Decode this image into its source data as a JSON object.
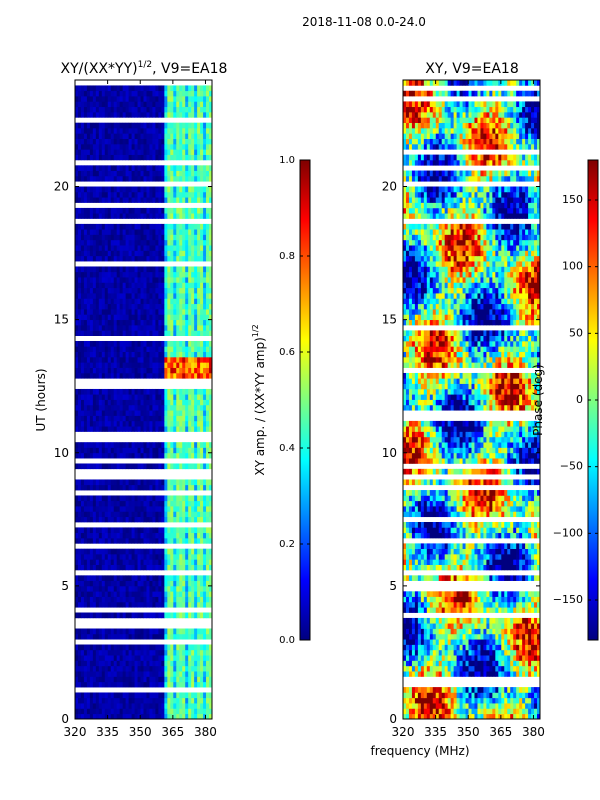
{
  "suptitle": "2018-11-08 0.0-24.0",
  "shared_xlabel": "frequency (MHz)",
  "colors": {
    "jet": [
      "#00007f",
      "#0000ff",
      "#007fff",
      "#00ffff",
      "#7fff7f",
      "#ffff00",
      "#ff7f00",
      "#ff0000",
      "#7f0000"
    ]
  },
  "chart_data": [
    {
      "type": "heatmap",
      "title": "XY/(XX*YY)^1/2, V9=EA18",
      "title_main": "XY/(XX*YY)",
      "title_sup": "1/2",
      "title_tail": ", V9=EA18",
      "xlabel": "",
      "ylabel": "UT (hours)",
      "xlim": [
        320,
        383
      ],
      "ylim": [
        0,
        24
      ],
      "xticks": [
        320,
        335,
        350,
        365,
        380
      ],
      "yticks": [
        0,
        5,
        10,
        15,
        20
      ],
      "colorbar": {
        "label": "XY amp. / (XX*YY amp)^1/2",
        "label_main": "XY amp. / (XX*YY amp)",
        "label_sup": "1/2",
        "range": [
          0.0,
          1.0
        ],
        "ticks": [
          "0.0",
          "0.2",
          "0.4",
          "0.6",
          "0.8",
          "1.0"
        ],
        "tick_values": [
          0.0,
          0.2,
          0.4,
          0.6,
          0.8,
          1.0
        ]
      }
    },
    {
      "type": "heatmap",
      "title": "XY, V9=EA18",
      "xlabel": "frequency (MHz)",
      "ylabel": "",
      "xlim": [
        320,
        383
      ],
      "ylim": [
        0,
        24
      ],
      "xticks": [
        320,
        335,
        350,
        365,
        380
      ],
      "yticks": [
        0,
        5,
        10,
        15,
        20
      ],
      "colorbar": {
        "label": "Phase (deg)",
        "range": [
          -180,
          180
        ],
        "ticks": [
          "−150",
          "−100",
          "−50",
          "0",
          "50",
          "100",
          "150"
        ],
        "tick_values": [
          -150,
          -100,
          -50,
          0,
          50,
          100,
          150
        ]
      }
    }
  ]
}
